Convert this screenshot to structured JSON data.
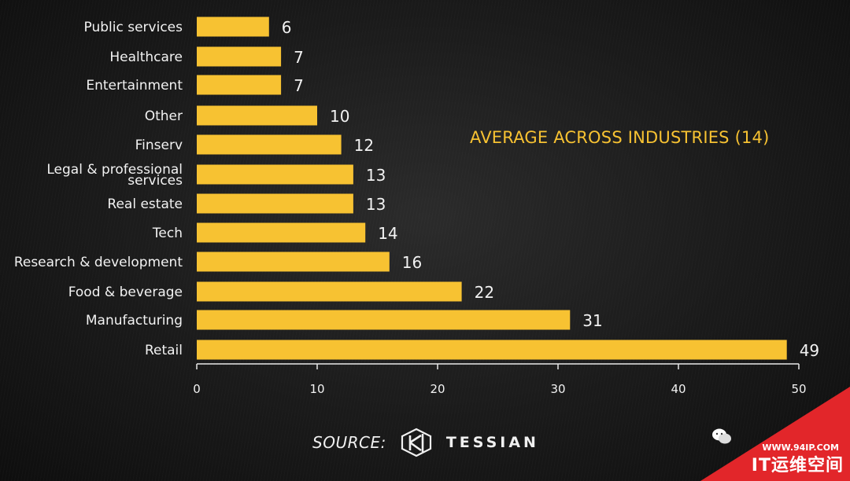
{
  "chart_data": {
    "type": "bar",
    "orientation": "horizontal",
    "categories": [
      "Public services",
      "Healthcare",
      "Entertainment",
      "Other",
      "Finserv",
      "Legal & professional services",
      "Real estate",
      "Tech",
      "Research & development",
      "Food & beverage",
      "Manufacturing",
      "Retail"
    ],
    "values": [
      6,
      7,
      7,
      10,
      12,
      13,
      13,
      14,
      16,
      22,
      31,
      49
    ],
    "xlim": [
      0,
      50
    ],
    "xticks": [
      0,
      10,
      20,
      30,
      40,
      50
    ],
    "grid": false,
    "bar_color": "#f7c232",
    "annotation": "AVERAGE ACROSS INDUSTRIES (14)",
    "annotation_color": "#f7c232"
  },
  "source": {
    "label": "SOURCE:",
    "brand": "TESSIAN",
    "logo_icon": "tessian-logo-icon"
  },
  "watermark": {
    "url": "WWW.94IP.COM",
    "name": "IT运维空间",
    "icon": "wechat-icon",
    "color": "#e2262a"
  }
}
